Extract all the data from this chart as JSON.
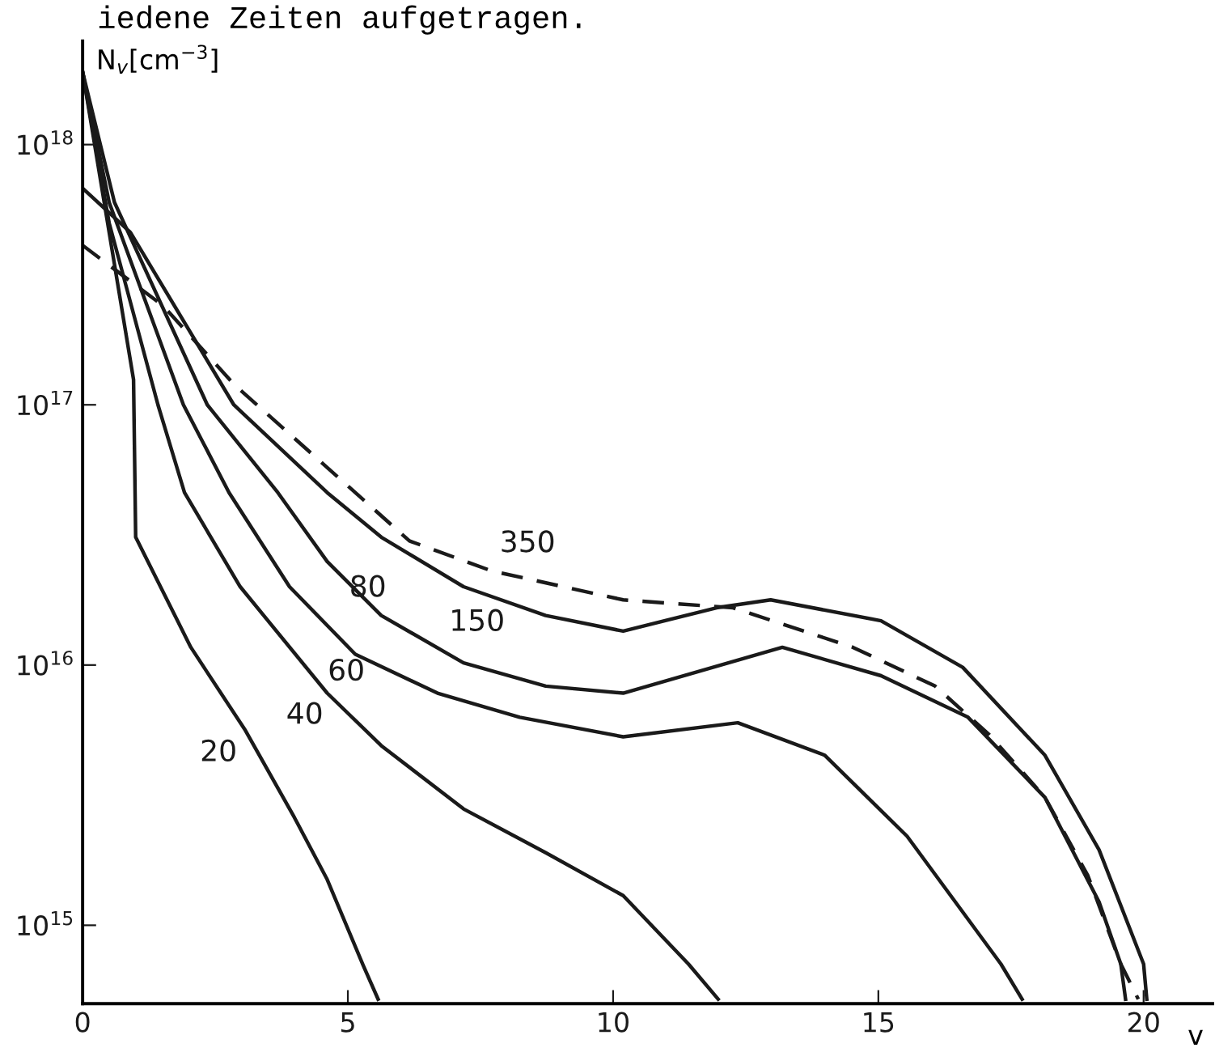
{
  "chart_data": {
    "type": "line",
    "xlabel": "v",
    "ylabel": "N$_{v}$[cm$^{−3}$]",
    "log": "y",
    "grid": false,
    "line_style": "solid",
    "marker": "none",
    "xlim": [
      0,
      21.3
    ],
    "ylim": [
      500000000000000.0,
      2.5e+18
    ],
    "xticks": [
      0,
      5,
      10,
      15,
      20
    ],
    "yticks": [
      {
        "value": 1000000000000000.0,
        "label": "10$^{15}$"
      },
      {
        "value": 1e+16,
        "label": "10$^{16}$"
      },
      {
        "value": 1e+17,
        "label": "10$^{17}$"
      },
      {
        "value": 1e+18,
        "label": "10$^{18}$"
      }
    ],
    "series": [
      {
        "name": "20",
        "color": "#1a1a1a",
        "x": [
          0,
          0.96,
          1.0,
          2.04,
          3.07,
          3.99,
          4.61,
          5.29,
          5.57
        ],
        "values": [
          1.9e+18,
          1.25e+17,
          3.1e+16,
          1.17e+16,
          5600000000000000.0,
          2600000000000000.0,
          1500000000000000.0,
          700000000000000.0,
          520000000000000.0
        ]
      },
      {
        "name": "40",
        "color": "#1a1a1a",
        "x": [
          0,
          0.5,
          1.42,
          1.92,
          2.97,
          4.61,
          5.63,
          7.18,
          8.73,
          10.19,
          11.42,
          11.98
        ],
        "values": [
          1.9e+18,
          5e+17,
          1e+17,
          4.6e+16,
          2e+16,
          7800000000000000.0,
          4900000000000000.0,
          2800000000000000.0,
          1900000000000000.0,
          1300000000000000.0,
          710000000000000.0,
          520000000000000.0
        ]
      },
      {
        "name": "60",
        "color": "#1a1a1a",
        "x": [
          0,
          0.5,
          1.9,
          2.76,
          3.9,
          5.14,
          6.69,
          8.24,
          10.19,
          12.35,
          13.99,
          15.54,
          17.31,
          17.71
        ],
        "values": [
          1.9e+18,
          6e+17,
          1e+17,
          4.6e+16,
          2e+16,
          1.1e+16,
          7800000000000000.0,
          6300000000000000.0,
          5300000000000000.0,
          6000000000000000.0,
          4500000000000000.0,
          2200000000000000.0,
          710000000000000.0,
          520000000000000.0
        ]
      },
      {
        "name": "80",
        "color": "#1a1a1a",
        "x": [
          0,
          0.6,
          2.35,
          3.68,
          4.61,
          5.63,
          7.18,
          8.73,
          10.19,
          13.19,
          15.05,
          16.69,
          18.14,
          19.16,
          19.57,
          19.66
        ],
        "values": [
          1.9e+18,
          6e+17,
          1e+17,
          4.6e+16,
          2.5e+16,
          1.55e+16,
          1.02e+16,
          8300000000000000.0,
          7800000000000000.0,
          1.17e+16,
          9100000000000000.0,
          6300000000000000.0,
          3100000000000000.0,
          1230000000000000.0,
          710000000000000.0,
          520000000000000.0
        ]
      },
      {
        "name": "150",
        "color": "#1a1a1a",
        "x": [
          0,
          0.9,
          2.85,
          4.61,
          5.63,
          7.18,
          8.73,
          10.19,
          11.95,
          12.97,
          15.05,
          16.59,
          18.14,
          19.16,
          20.0,
          20.06
        ],
        "values": [
          6.8e+17,
          4.6e+17,
          1e+17,
          4.6e+16,
          3.1e+16,
          2e+16,
          1.55e+16,
          1.35e+16,
          1.66e+16,
          1.78e+16,
          1.48e+16,
          9800000000000000.0,
          4500000000000000.0,
          1950000000000000.0,
          710000000000000.0,
          520000000000000.0
        ]
      },
      {
        "name": "350",
        "color": "#1a1a1a",
        "line_style": "dashed",
        "x": [
          0,
          1.52,
          2.85,
          6.16,
          7.71,
          10.19,
          12.26,
          14.52,
          16.07,
          17.09,
          18.14,
          18.95,
          19.57,
          19.9
        ],
        "values": [
          4.1e+17,
          2.4e+17,
          1.2e+17,
          3e+16,
          2.3e+16,
          1.78e+16,
          1.66e+16,
          1.17e+16,
          8300000000000000.0,
          5400000000000000.0,
          3100000000000000.0,
          1550000000000000.0,
          710000000000000.0,
          520000000000000.0
        ]
      }
    ],
    "annotations": [
      "iedene Zeiten aufgetragen."
    ]
  }
}
